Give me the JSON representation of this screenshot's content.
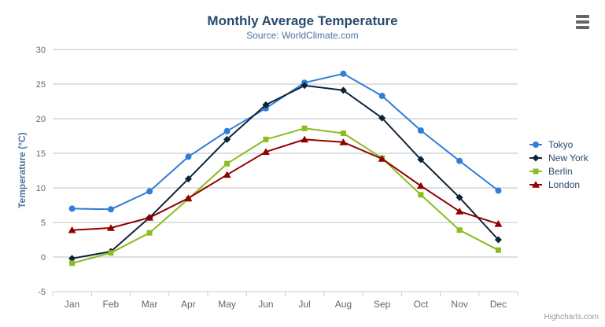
{
  "chart_data": {
    "type": "line",
    "title": "Monthly Average Temperature",
    "subtitle": "Source: WorldClimate.com",
    "categories": [
      "Jan",
      "Feb",
      "Mar",
      "Apr",
      "May",
      "Jun",
      "Jul",
      "Aug",
      "Sep",
      "Oct",
      "Nov",
      "Dec"
    ],
    "xlabel": "",
    "ylabel": "Temperature (°C)",
    "ylim": [
      -5,
      30
    ],
    "yticks": [
      -5,
      0,
      5,
      10,
      15,
      20,
      25,
      30
    ],
    "grid": true,
    "legend_position": "right",
    "series": [
      {
        "name": "Tokyo",
        "color": "#2f7ed8",
        "marker": "circle",
        "values": [
          7.0,
          6.9,
          9.5,
          14.5,
          18.2,
          21.5,
          25.2,
          26.5,
          23.3,
          18.3,
          13.9,
          9.6
        ]
      },
      {
        "name": "New York",
        "color": "#0d233a",
        "marker": "diamond",
        "values": [
          -0.2,
          0.8,
          5.7,
          11.3,
          17.0,
          22.0,
          24.8,
          24.1,
          20.1,
          14.1,
          8.6,
          2.5
        ]
      },
      {
        "name": "Berlin",
        "color": "#8bbc21",
        "marker": "square",
        "values": [
          -0.9,
          0.6,
          3.5,
          8.4,
          13.5,
          17.0,
          18.6,
          17.9,
          14.3,
          9.0,
          3.9,
          1.0
        ]
      },
      {
        "name": "London",
        "color": "#910000",
        "marker": "triangle",
        "values": [
          3.9,
          4.2,
          5.7,
          8.5,
          11.9,
          15.2,
          17.0,
          16.6,
          14.2,
          10.3,
          6.6,
          4.8
        ]
      }
    ],
    "credits": "Highcharts.com"
  },
  "colors": {
    "background": "#ffffff",
    "title": "#274b6d",
    "subtitle": "#4d759e",
    "axis_title": "#4d759e",
    "axis_label": "#666666",
    "grid_line": "#c0c0c0",
    "axis_line": "#c0d0e0",
    "legend_text": "#274b6d",
    "credits": "#999999",
    "menu_icon": "#666666"
  }
}
